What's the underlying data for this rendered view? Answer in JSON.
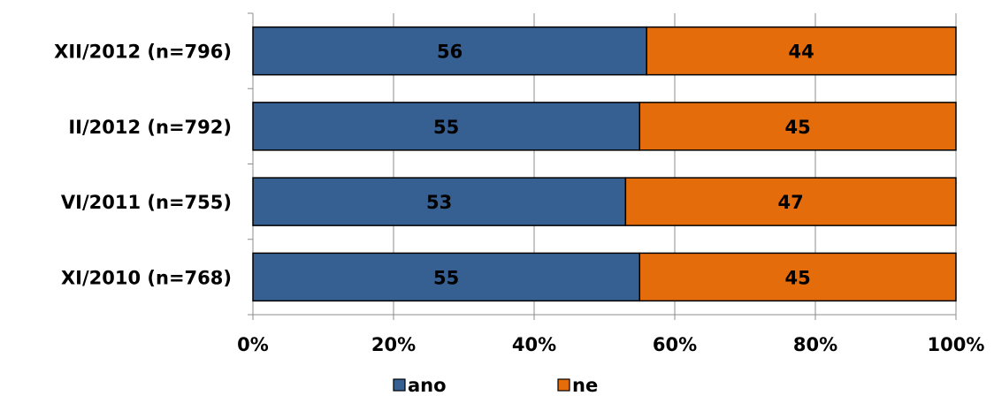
{
  "chart_data": {
    "type": "bar",
    "orientation": "horizontal",
    "stacked": true,
    "percent_stacked": true,
    "categories": [
      "XII/2012 (n=796)",
      "II/2012 (n=792)",
      "VI/2011 (n=755)",
      "XI/2010 (n=768)"
    ],
    "series": [
      {
        "name": "ano",
        "values": [
          56,
          55,
          53,
          55
        ],
        "color": "#376092"
      },
      {
        "name": "ne",
        "values": [
          44,
          45,
          47,
          45
        ],
        "color": "#E46C0A"
      }
    ],
    "xlim": [
      0,
      100
    ],
    "x_ticks": [
      "0%",
      "20%",
      "40%",
      "60%",
      "80%",
      "100%"
    ],
    "grid": "vertical",
    "legend": "bottom"
  }
}
